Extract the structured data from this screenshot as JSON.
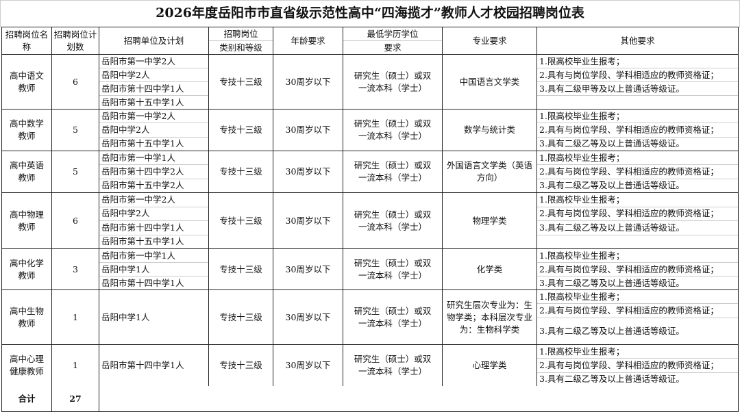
{
  "title": "2026年度岳阳市市直省级示范性高中“四海揽才”教师人才校园招聘岗位表",
  "headers": {
    "name": "招聘岗位名称",
    "count": "招聘岗位计划数",
    "units": "招聘单位及计划",
    "category_1": "招聘岗位",
    "category_2": "类别和等级",
    "age": "年龄要求",
    "edu_1": "最低学历学位",
    "edu_2": "要求",
    "major": "专业要求",
    "other": "其他要求"
  },
  "rows": [
    {
      "name": "高中语文教师",
      "count": "6",
      "units": [
        "岳阳市第一中学2人",
        "岳阳中学2人",
        "岳阳市第十四中学1人",
        "岳阳市第十五中学1人"
      ],
      "category": "专技十三级",
      "age": "30周岁以下",
      "edu": "研究生（硕士）或双一流本科（学士）",
      "major": "中国语言文学类",
      "other": [
        "1.限高校毕业生报考；",
        "2.具有与岗位学段、学科相适应的教师资格证；",
        "3.具有二级甲等及以上普通话等级证。",
        ""
      ]
    },
    {
      "name": "高中数学教师",
      "count": "5",
      "units": [
        "岳阳市第一中学2人",
        "岳阳中学2人",
        "岳阳市第十五中学1人"
      ],
      "category": "专技十三级",
      "age": "30周岁以下",
      "edu": "研究生（硕士）或双一流本科（学士）",
      "major": "数学与统计类",
      "other": [
        "1.限高校毕业生报考；",
        "2.具有与岗位学段、学科相适应的教师资格证；",
        "3.具有二级乙等及以上普通话等级证。"
      ]
    },
    {
      "name": "高中英语教师",
      "count": "5",
      "units": [
        "岳阳市第一中学1人",
        "岳阳市第十四中学2人",
        "岳阳市第十五中学2人"
      ],
      "category": "专技十三级",
      "age": "30周岁以下",
      "edu": "研究生（硕士）或双一流本科（学士）",
      "major": "外国语言文学类（英语方向）",
      "other": [
        "1.限高校毕业生报考；",
        "2.具有与岗位学段、学科相适应的教师资格证；",
        "3.具有二级乙等及以上普通话等级证。"
      ]
    },
    {
      "name": "高中物理教师",
      "count": "6",
      "units": [
        "岳阳市第一中学2人",
        "岳阳中学2人",
        "岳阳市第十四中学1人",
        "岳阳市第十五中学1人"
      ],
      "category": "专技十三级",
      "age": "30周岁以下",
      "edu": "研究生（硕士）或双一流本科（学士）",
      "major": "物理学类",
      "other": [
        "1.限高校毕业生报考；",
        "2.具有与岗位学段、学科相适应的教师资格证；",
        "3.具有二级乙等及以上普通话等级证。",
        ""
      ]
    },
    {
      "name": "高中化学教师",
      "count": "3",
      "units": [
        "岳阳市第一中学1人",
        "岳阳中学1人",
        "岳阳市第十四中学1人"
      ],
      "category": "专技十三级",
      "age": "30周岁以下",
      "edu": "研究生（硕士）或双一流本科（学士）",
      "major": "化学类",
      "other": [
        "1.限高校毕业生报考；",
        "2.具有与岗位学段、学科相适应的教师资格证；",
        "3.具有二级乙等及以上普通话等级证。"
      ]
    },
    {
      "name": "高中生物教师",
      "count": "1",
      "units": [
        "岳阳中学1人"
      ],
      "category": "专技十三级",
      "age": "30周岁以下",
      "edu": "研究生（硕士）或双一流本科（学士）",
      "major": "研究生层次专业为：生物学类；本科层次专业为：生物科学类",
      "other": [
        "1.限高校毕业生报考；",
        "2.具有与岗位学段、学科相适应的教师资格证；",
        "3.具有二级乙等及以上普通话等级证。"
      ]
    },
    {
      "name": "高中心理健康教师",
      "count": "1",
      "units": [
        "岳阳市第十四中学1人"
      ],
      "category": "专技十三级",
      "age": "30周岁以下",
      "edu": "研究生（硕士）或双一流本科（学士）",
      "major": "心理学类",
      "other": [
        "1.限高校毕业生报考；",
        "2.具有与岗位学段、学科相适应的教师资格证；",
        "3.具有二级乙等及以上普通话等级证。"
      ]
    }
  ],
  "total": {
    "label": "合计",
    "count": "27"
  }
}
